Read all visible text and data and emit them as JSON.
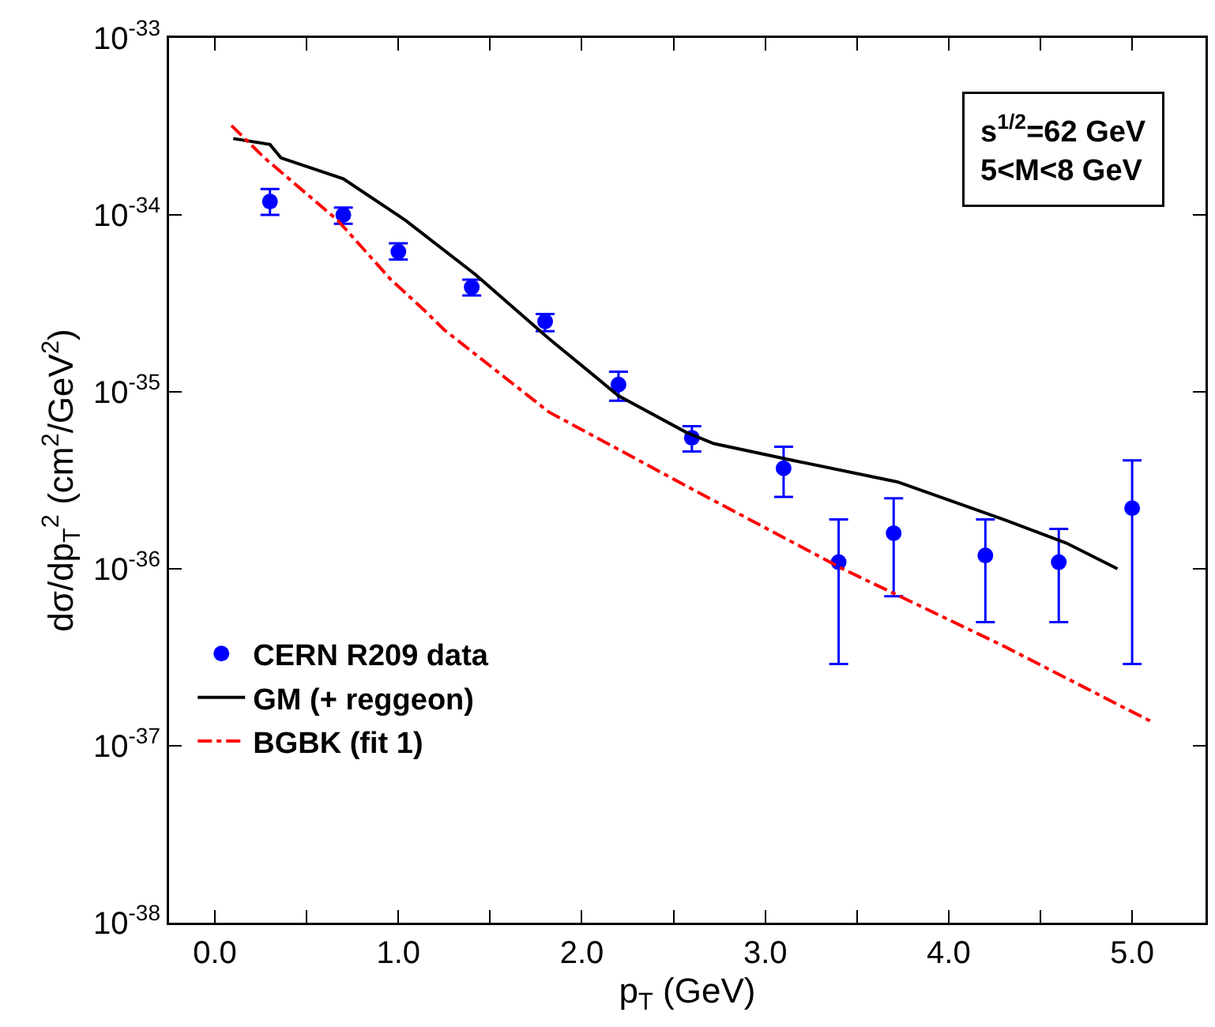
{
  "chart_data": {
    "type": "scatter",
    "xlabel": "p$_{T}$ (GeV)",
    "ylabel": "dσ/dp$_{T}$$^{2}$ (cm$^{2}$/GeV$^{2}$)",
    "annotations": [
      "s$^{1/2}$=62 GeV",
      "5<M<8 GeV"
    ],
    "log": "y",
    "xlim": [
      -0.25,
      5.4
    ],
    "ylim": [
      1e-38,
      1e-33
    ],
    "xticks": [
      {
        "value": 0,
        "label": "0.0"
      },
      {
        "value": 0.5,
        "label": null
      },
      {
        "value": 1,
        "label": "1.0"
      },
      {
        "value": 1.5,
        "label": null
      },
      {
        "value": 2,
        "label": "2.0"
      },
      {
        "value": 2.5,
        "label": null
      },
      {
        "value": 3,
        "label": "3.0"
      },
      {
        "value": 3.5,
        "label": null
      },
      {
        "value": 4,
        "label": "4.0"
      },
      {
        "value": 4.5,
        "label": null
      },
      {
        "value": 5,
        "label": "5.0"
      }
    ],
    "yticks": [
      {
        "value": 1e-38,
        "label": "10$^{-38}$"
      },
      {
        "value": 1e-37,
        "label": "10$^{-37}$"
      },
      {
        "value": 1e-36,
        "label": "10$^{-36}$"
      },
      {
        "value": 1e-35,
        "label": "10$^{-35}$"
      },
      {
        "value": 1e-34,
        "label": "10$^{-34}$"
      },
      {
        "value": 1e-33,
        "label": "10$^{-33}$"
      }
    ],
    "grid": false,
    "legend": "bottom left",
    "series": [
      {
        "name": "CERN R209 data",
        "marker": "circle",
        "color": "#0000ff",
        "x": [
          0.3,
          0.7,
          1.0,
          1.4,
          1.8,
          2.2,
          2.6,
          3.1,
          3.4,
          3.7,
          4.2,
          4.6,
          5.0
        ],
        "values": [
          1.19e-34,
          1e-34,
          6.2e-35,
          3.9e-35,
          2.5e-35,
          1.1e-35,
          5.5e-36,
          3.7e-36,
          1.09e-36,
          1.59e-36,
          1.19e-36,
          1.09e-36,
          2.2e-36
        ],
        "errors": [
          [
            1e-34,
            1.4e-34
          ],
          [
            8.9e-35,
            1.1e-34
          ],
          [
            5.6e-35,
            6.9e-35
          ],
          [
            3.5e-35,
            4.3e-35
          ],
          [
            2.2e-35,
            2.75e-35
          ],
          [
            8.9e-36,
            1.3e-35
          ],
          [
            4.6e-36,
            6.4e-36
          ],
          [
            2.55e-36,
            4.9e-36
          ],
          [
            2.9e-37,
            1.9e-36
          ],
          [
            7e-37,
            2.5e-36
          ],
          [
            5e-37,
            1.9e-36
          ],
          [
            5e-37,
            1.68e-36
          ],
          [
            2.9e-37,
            4.1e-36
          ]
        ]
      },
      {
        "name": "GM (+ reggeon)",
        "type": "line",
        "marker": "none",
        "line_style": "solid",
        "color": "#000000",
        "x": [
          0.1,
          0.3,
          0.36,
          0.7,
          1.04,
          1.42,
          1.82,
          2.2,
          2.57,
          2.72,
          3.15,
          3.72,
          4.3,
          4.64,
          4.92
        ],
        "values": [
          2.7e-34,
          2.5e-34,
          2.1e-34,
          1.6e-34,
          9.3e-35,
          4.6e-35,
          2e-35,
          9.5e-36,
          5.9e-36,
          5.1e-36,
          4.1e-36,
          3.1e-36,
          1.9e-36,
          1.4e-36,
          1e-36
        ]
      },
      {
        "name": "BGBK (fit 1)",
        "type": "line",
        "marker": "none",
        "line_style": "dashed",
        "color": "#ff0000",
        "x": [
          0.09,
          0.27,
          0.67,
          0.96,
          1.14,
          1.25,
          1.82,
          2.63,
          3.43,
          4.29,
          5.11
        ],
        "values": [
          3.2e-34,
          2.1e-34,
          9.3e-35,
          4.3e-35,
          2.9e-35,
          2.24e-35,
          7.7e-36,
          2.72e-36,
          9.9e-37,
          3.7e-37,
          1.36e-37
        ]
      }
    ]
  }
}
